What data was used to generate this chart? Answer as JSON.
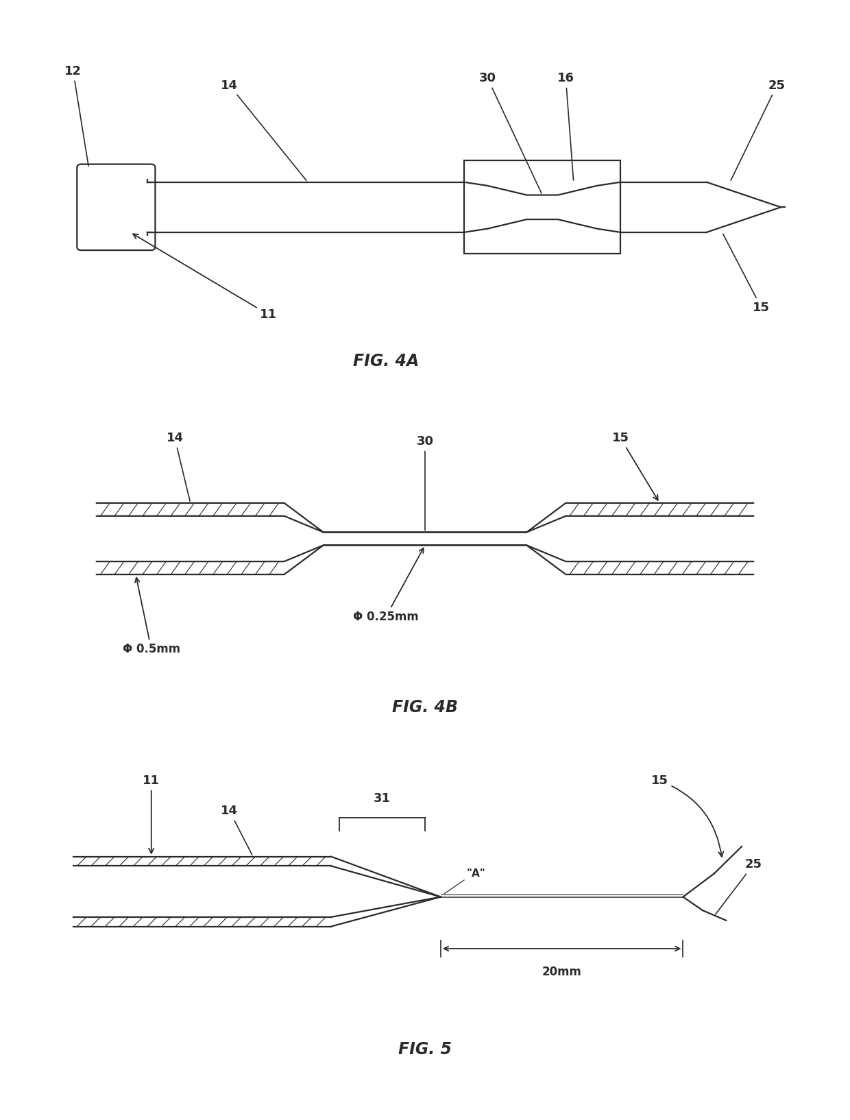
{
  "bg_color": "#ffffff",
  "line_color": "#2a2a2a",
  "lw": 1.6,
  "lw_thin": 1.0,
  "fig4a_title": "FIG. 4A",
  "fig4b_title": "FIG. 4B",
  "fig5_title": "FIG. 5"
}
